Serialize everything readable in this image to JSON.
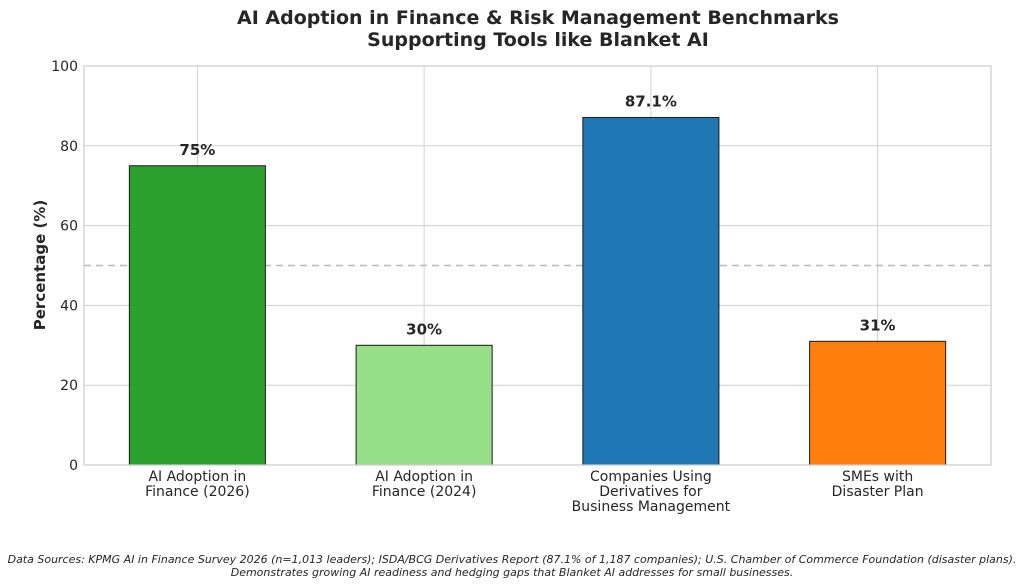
{
  "chart_data": {
    "type": "bar",
    "title_lines": [
      "AI Adoption in Finance & Risk Management Benchmarks",
      "Supporting Tools like Blanket AI"
    ],
    "ylabel": "Percentage (%)",
    "xlabel": "",
    "ylim": [
      0,
      100
    ],
    "yticks": [
      "0",
      "20",
      "40",
      "60",
      "80",
      "100"
    ],
    "ytick_values": [
      0,
      20,
      40,
      60,
      80,
      100
    ],
    "grid": true,
    "reference_line": 50,
    "categories": [
      [
        "AI Adoption in",
        "Finance (2026)"
      ],
      [
        "AI Adoption in",
        "Finance (2024)"
      ],
      [
        "Companies Using",
        "Derivatives for",
        "Business Management"
      ],
      [
        "SMEs with",
        "Disaster Plan"
      ]
    ],
    "values": [
      75,
      30,
      87.1,
      31
    ],
    "data_labels": [
      "75%",
      "30%",
      "87.1%",
      "31%"
    ],
    "colors": [
      "#2ca02c",
      "#98df8a",
      "#1f77b4",
      "#ff7f0e"
    ]
  },
  "footnote": {
    "line1": "Data Sources: KPMG AI in Finance Survey 2026 (n=1,013 leaders); ISDA/BCG Derivatives Report (87.1% of 1,187 companies); U.S. Chamber of Commerce Foundation (disaster plans).",
    "line2": "Demonstrates growing AI readiness and hedging gaps that Blanket AI addresses for small businesses."
  }
}
